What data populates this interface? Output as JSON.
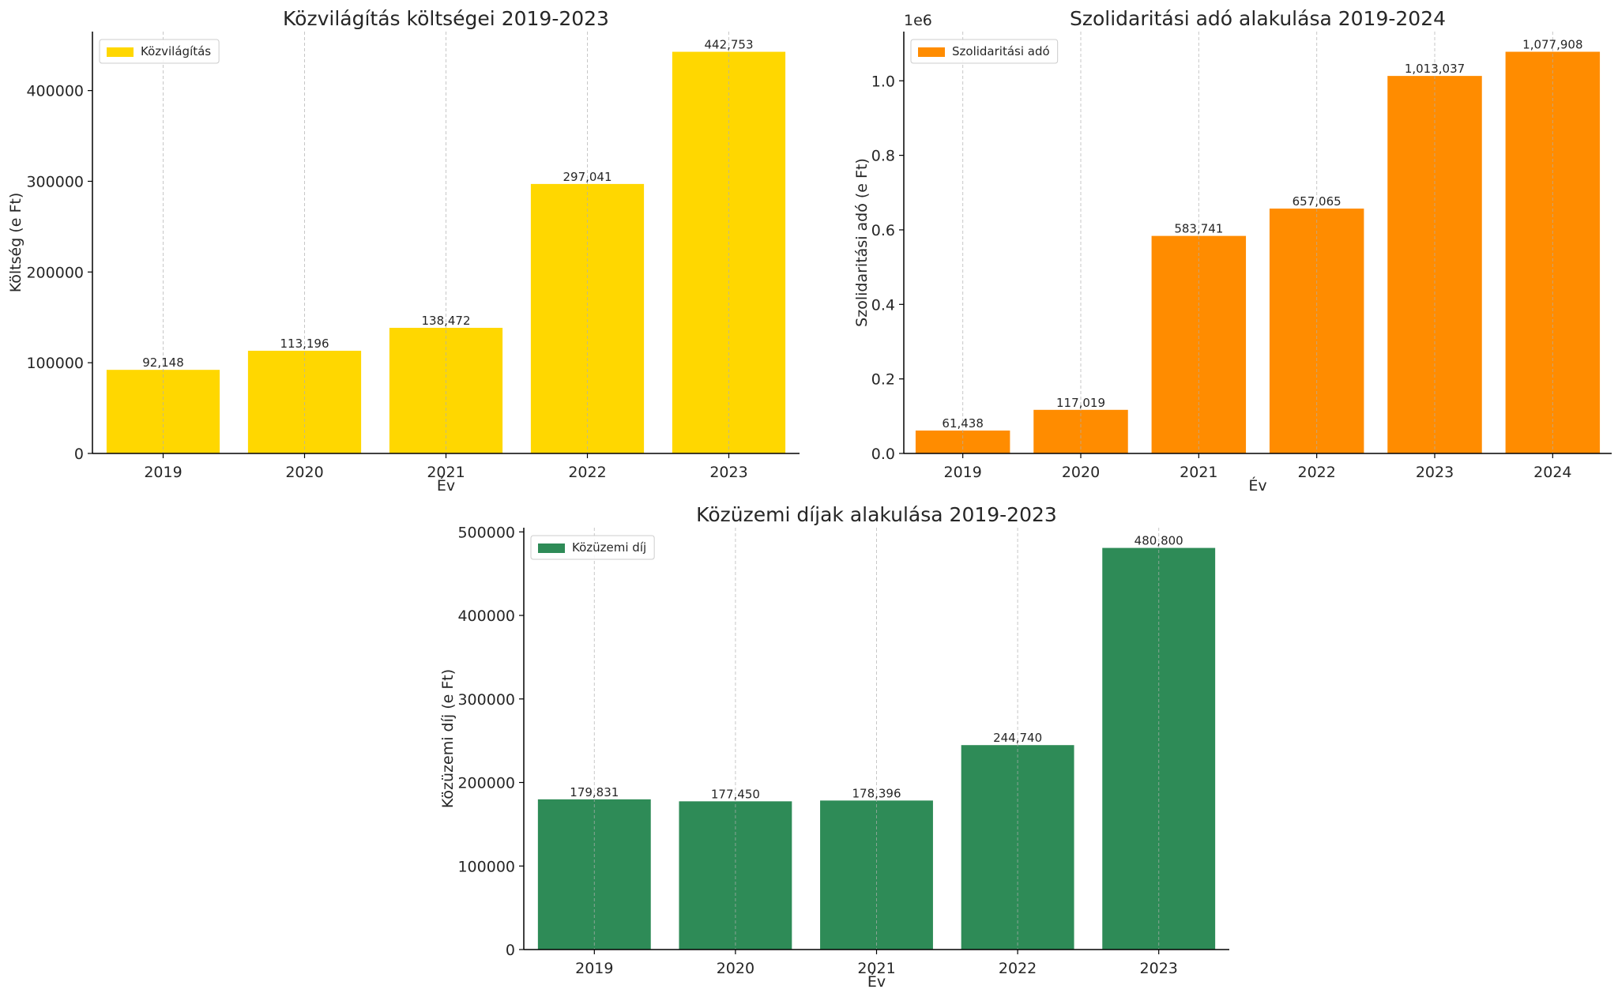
{
  "chart_data": [
    {
      "type": "bar",
      "title": "Közvilágítás költségei 2019-2023",
      "xlabel": "Év",
      "ylabel": "Költség (e Ft)",
      "categories": [
        "2019",
        "2020",
        "2021",
        "2022",
        "2023"
      ],
      "series": [
        {
          "name": "Közvilágítás",
          "values": [
            92148,
            113196,
            138472,
            297041,
            442753
          ],
          "color": "#FFD700"
        }
      ],
      "data_labels": [
        "92,148",
        "113,196",
        "138,472",
        "297,041",
        "442,753"
      ],
      "ylim": [
        0,
        465000
      ],
      "yticks": [
        0,
        100000,
        200000,
        300000,
        400000
      ],
      "ytick_labels": [
        "0",
        "100000",
        "200000",
        "300000",
        "400000"
      ],
      "y_offset_label": "",
      "grid": "vertical dashed",
      "legend_position": "top-left"
    },
    {
      "type": "bar",
      "title": "Szolidaritási adó alakulása 2019-2024",
      "xlabel": "Év",
      "ylabel": "Szolidaritási adó (e Ft)",
      "categories": [
        "2019",
        "2020",
        "2021",
        "2022",
        "2023",
        "2024"
      ],
      "series": [
        {
          "name": "Szolidaritási adó",
          "values": [
            61438,
            117019,
            583741,
            657065,
            1013037,
            1077908
          ],
          "color": "#FF8C00"
        }
      ],
      "data_labels": [
        "61,438",
        "117,019",
        "583,741",
        "657,065",
        "1,013,037",
        "1,077,908"
      ],
      "ylim": [
        0,
        1132000
      ],
      "yticks": [
        0,
        200000,
        400000,
        600000,
        800000,
        1000000
      ],
      "ytick_labels": [
        "0.0",
        "0.2",
        "0.4",
        "0.6",
        "0.8",
        "1.0"
      ],
      "y_offset_label": "1e6",
      "grid": "vertical dashed",
      "legend_position": "top-left"
    },
    {
      "type": "bar",
      "title": "Közüzemi díjak alakulása 2019-2023",
      "xlabel": "Év",
      "ylabel": "Közüzemi díj (e Ft)",
      "categories": [
        "2019",
        "2020",
        "2021",
        "2022",
        "2023"
      ],
      "series": [
        {
          "name": "Közüzemi díj",
          "values": [
            179831,
            177450,
            178396,
            244740,
            480800
          ],
          "color": "#2E8B57"
        }
      ],
      "data_labels": [
        "179,831",
        "177,450",
        "178,396",
        "244,740",
        "480,800"
      ],
      "ylim": [
        0,
        505000
      ],
      "yticks": [
        0,
        100000,
        200000,
        300000,
        400000,
        500000
      ],
      "ytick_labels": [
        "0",
        "100000",
        "200000",
        "300000",
        "400000",
        "500000"
      ],
      "y_offset_label": "",
      "grid": "vertical dashed",
      "legend_position": "top-left"
    }
  ]
}
